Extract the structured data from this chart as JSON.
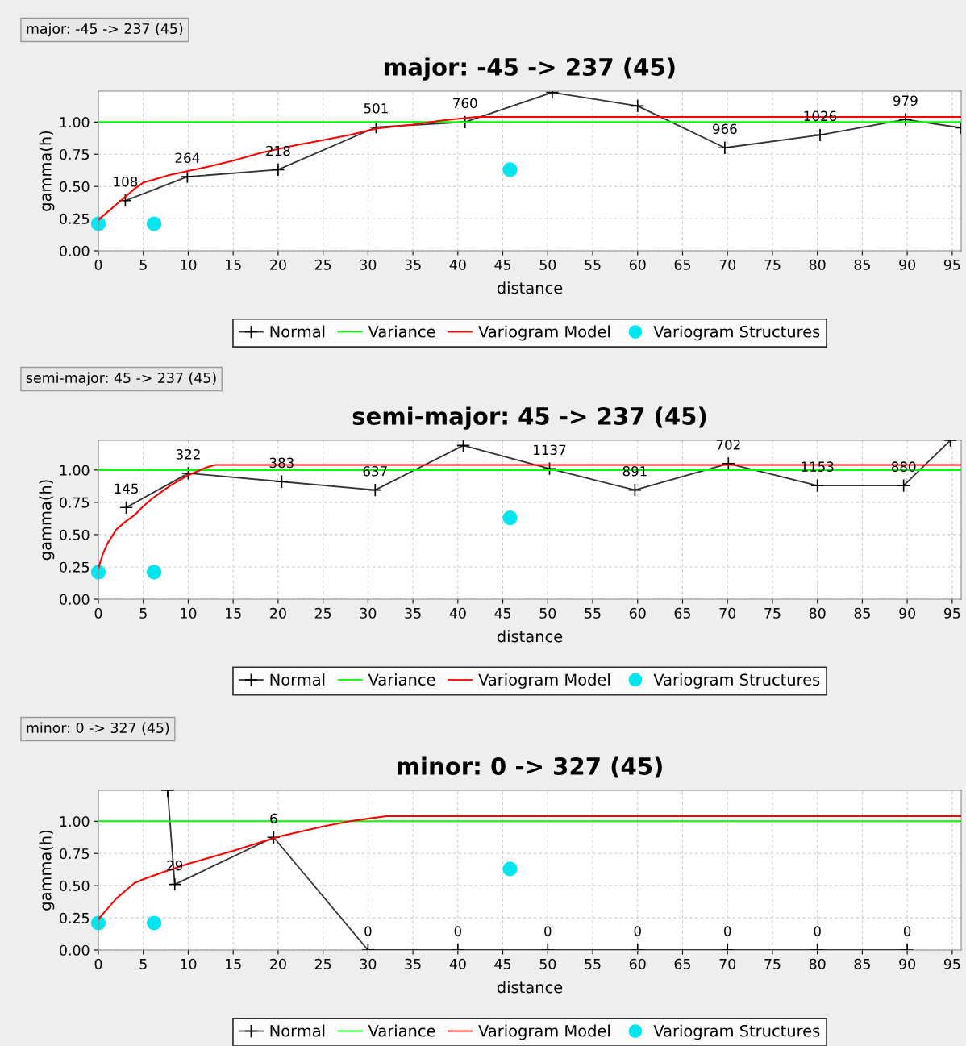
{
  "chart_data": [
    {
      "type": "line",
      "title": "major: -45 -> 237 (45)",
      "annotations": [
        "major: -45 -> 237 (45)",
        {
          "text": "108",
          "x": 3,
          "y": 0.39
        },
        {
          "text": "264",
          "x": 9.9,
          "y": 0.575
        },
        {
          "text": "218",
          "x": 20,
          "y": 0.63
        },
        {
          "text": "501",
          "x": 30.9,
          "y": 0.96
        },
        {
          "text": "760",
          "x": 40.8,
          "y": 1.0
        },
        {
          "text": "966",
          "x": 69.7,
          "y": 0.8
        },
        {
          "text": "1026",
          "x": 80.3,
          "y": 0.9
        },
        {
          "text": "979",
          "x": 89.8,
          "y": 1.02
        }
      ],
      "xlabel": "distance",
      "ylabel": "gamma(h)",
      "xlim": [
        0,
        96
      ],
      "ylim": [
        0,
        1.24
      ],
      "xticks": [
        0,
        5,
        10,
        15,
        20,
        25,
        30,
        35,
        40,
        45,
        50,
        55,
        60,
        65,
        70,
        75,
        80,
        85,
        90,
        95
      ],
      "yticks": [
        {
          "value": 0,
          "label": "0.00"
        },
        {
          "value": 0.25,
          "label": "0.25"
        },
        {
          "value": 0.5,
          "label": "0.50"
        },
        {
          "value": 0.75,
          "label": "0.75"
        },
        {
          "value": 1,
          "label": "1.00"
        }
      ],
      "grid": true,
      "legend": "bottom",
      "series": [
        {
          "name": "Normal",
          "color": "#333333",
          "marker": "cross",
          "x": [
            3,
            9.9,
            20,
            30.9,
            40.8,
            50.5,
            60,
            69.7,
            80.3,
            89.8,
            96
          ],
          "values": [
            0.39,
            0.575,
            0.63,
            0.96,
            1.0,
            1.23,
            1.125,
            0.8,
            0.9,
            1.02,
            0.955
          ]
        },
        {
          "name": "Variance",
          "color": "#00ff00",
          "marker": "none",
          "x": [
            0,
            96
          ],
          "values": [
            1,
            1
          ]
        },
        {
          "name": "Variogram Model",
          "color": "#ff0000",
          "marker": "none",
          "x": [
            0,
            1,
            2,
            3,
            4,
            5,
            6,
            8,
            10,
            12,
            15,
            18,
            20,
            22,
            25,
            28,
            31,
            35,
            38,
            42,
            96
          ],
          "values": [
            0.24,
            0.3,
            0.36,
            0.42,
            0.48,
            0.53,
            0.55,
            0.59,
            0.62,
            0.65,
            0.7,
            0.76,
            0.79,
            0.82,
            0.86,
            0.9,
            0.95,
            0.98,
            1.01,
            1.04,
            1.04
          ]
        },
        {
          "name": "Variogram Structures",
          "type": "scatter",
          "color": "#00e5ee",
          "marker": "circle",
          "x": [
            0,
            6.2,
            45.8
          ],
          "values": [
            0.21,
            0.21,
            0.63
          ]
        }
      ]
    },
    {
      "type": "line",
      "title": "semi-major: 45 -> 237 (45)",
      "annotations": [
        "semi-major: 45 -> 237 (45)",
        {
          "text": "145",
          "x": 3.1,
          "y": 0.71
        },
        {
          "text": "322",
          "x": 10,
          "y": 0.975
        },
        {
          "text": "383",
          "x": 20.4,
          "y": 0.91
        },
        {
          "text": "637",
          "x": 30.8,
          "y": 0.845
        },
        {
          "text": "1137",
          "x": 50.2,
          "y": 1.01
        },
        {
          "text": "891",
          "x": 59.7,
          "y": 0.845
        },
        {
          "text": "702",
          "x": 70.1,
          "y": 1.05
        },
        {
          "text": "1153",
          "x": 80,
          "y": 0.88
        },
        {
          "text": "880",
          "x": 89.6,
          "y": 0.88
        }
      ],
      "xlabel": "distance",
      "ylabel": "gamma(h)",
      "xlim": [
        0,
        96
      ],
      "ylim": [
        0,
        1.23
      ],
      "xticks": [
        0,
        5,
        10,
        15,
        20,
        25,
        30,
        35,
        40,
        45,
        50,
        55,
        60,
        65,
        70,
        75,
        80,
        85,
        90,
        95
      ],
      "yticks": [
        {
          "value": 0,
          "label": "0.00"
        },
        {
          "value": 0.25,
          "label": "0.25"
        },
        {
          "value": 0.5,
          "label": "0.50"
        },
        {
          "value": 0.75,
          "label": "0.75"
        },
        {
          "value": 1,
          "label": "1.00"
        }
      ],
      "grid": true,
      "legend": "bottom",
      "series": [
        {
          "name": "Normal",
          "color": "#333333",
          "marker": "cross",
          "x": [
            3.1,
            10,
            20.4,
            30.8,
            40.6,
            50.2,
            59.7,
            70.1,
            80,
            89.6,
            94.8
          ],
          "values": [
            0.71,
            0.975,
            0.91,
            0.845,
            1.19,
            1.01,
            0.845,
            1.05,
            0.88,
            0.88,
            1.23
          ]
        },
        {
          "name": "Variance",
          "color": "#00ff00",
          "marker": "none",
          "x": [
            0,
            96
          ],
          "values": [
            1,
            1
          ]
        },
        {
          "name": "Variogram Model",
          "color": "#ff0000",
          "marker": "none",
          "x": [
            0,
            0.5,
            1,
            2,
            3,
            4,
            5,
            6,
            8,
            10,
            12,
            13,
            96
          ],
          "values": [
            0.24,
            0.35,
            0.43,
            0.54,
            0.6,
            0.65,
            0.72,
            0.78,
            0.88,
            0.96,
            1.02,
            1.04,
            1.04
          ]
        },
        {
          "name": "Variogram Structures",
          "type": "scatter",
          "color": "#00e5ee",
          "marker": "circle",
          "x": [
            0,
            6.2,
            45.8
          ],
          "values": [
            0.21,
            0.21,
            0.63
          ]
        }
      ]
    },
    {
      "type": "line",
      "title": "minor: 0 -> 327 (45)",
      "annotations": [
        "minor: 0 -> 327 (45)",
        {
          "text": "29",
          "x": 8.5,
          "y": 0.51
        },
        {
          "text": "6",
          "x": 19.5,
          "y": 0.875
        },
        {
          "text": "0",
          "x": 30,
          "y": 0
        },
        {
          "text": "0",
          "x": 40,
          "y": 0
        },
        {
          "text": "0",
          "x": 50,
          "y": 0
        },
        {
          "text": "0",
          "x": 60,
          "y": 0
        },
        {
          "text": "0",
          "x": 70,
          "y": 0
        },
        {
          "text": "0",
          "x": 80,
          "y": 0
        },
        {
          "text": "0",
          "x": 90,
          "y": 0
        }
      ],
      "xlabel": "distance",
      "ylabel": "gamma(h)",
      "xlim": [
        0,
        96
      ],
      "ylim": [
        0,
        1.24
      ],
      "xticks": [
        0,
        5,
        10,
        15,
        20,
        25,
        30,
        35,
        40,
        45,
        50,
        55,
        60,
        65,
        70,
        75,
        80,
        85,
        90,
        95
      ],
      "yticks": [
        {
          "value": 0,
          "label": "0.00"
        },
        {
          "value": 0.25,
          "label": "0.25"
        },
        {
          "value": 0.5,
          "label": "0.50"
        },
        {
          "value": 0.75,
          "label": "0.75"
        },
        {
          "value": 1,
          "label": "1.00"
        }
      ],
      "grid": true,
      "legend": "bottom",
      "series": [
        {
          "name": "Normal",
          "color": "#333333",
          "marker": "cross",
          "x": [
            7.7,
            8.5,
            19.5,
            30,
            40,
            50,
            60,
            70,
            80,
            90
          ],
          "values": [
            1.24,
            0.51,
            0.875,
            0,
            0,
            0,
            0,
            0,
            0,
            0
          ]
        },
        {
          "name": "Variance",
          "color": "#00ff00",
          "marker": "none",
          "x": [
            0,
            96
          ],
          "values": [
            1,
            1
          ]
        },
        {
          "name": "Variogram Model",
          "color": "#ff0000",
          "marker": "none",
          "x": [
            0,
            1,
            2,
            3,
            4,
            5,
            7,
            10,
            15,
            20,
            25,
            28,
            30,
            32,
            96
          ],
          "values": [
            0.24,
            0.32,
            0.4,
            0.46,
            0.52,
            0.55,
            0.6,
            0.67,
            0.77,
            0.88,
            0.96,
            1.0,
            1.02,
            1.04,
            1.04
          ]
        },
        {
          "name": "Variogram Structures",
          "type": "scatter",
          "color": "#00e5ee",
          "marker": "circle",
          "x": [
            0,
            6.2,
            45.8
          ],
          "values": [
            0.21,
            0.21,
            0.63
          ]
        }
      ]
    }
  ]
}
